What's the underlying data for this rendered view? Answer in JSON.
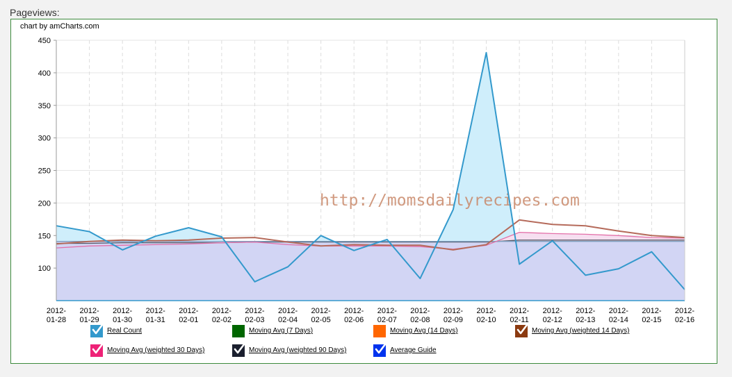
{
  "page": {
    "section_title": "Pageviews:",
    "credit": "chart by amCharts.com",
    "watermark": "http://momsdailyrecipes.com"
  },
  "colors": {
    "real": "#3399cc",
    "real_fill": "#cfeefb",
    "weighted30": "#e36fa8",
    "weighted30_fill": "#f6dff0",
    "weighted14": "#b56a5a",
    "avg_fill": "#d2d5f4",
    "guide_dark": "#555a66",
    "guide_blue": "#7f9fbf"
  },
  "chart_data": {
    "type": "line",
    "x": [
      "2012-01-28",
      "2012-01-29",
      "2012-01-30",
      "2012-01-31",
      "2012-02-01",
      "2012-02-02",
      "2012-02-03",
      "2012-02-04",
      "2012-02-05",
      "2012-02-06",
      "2012-02-07",
      "2012-02-08",
      "2012-02-09",
      "2012-02-10",
      "2012-02-11",
      "2012-02-12",
      "2012-02-13",
      "2012-02-14",
      "2012-02-15",
      "2012-02-16"
    ],
    "x_tick_labels": [
      [
        "2012-",
        "01-28"
      ],
      [
        "2012-",
        "01-29"
      ],
      [
        "2012-",
        "01-30"
      ],
      [
        "2012-",
        "01-31"
      ],
      [
        "2012-",
        "02-01"
      ],
      [
        "2012-",
        "02-02"
      ],
      [
        "2012-",
        "02-03"
      ],
      [
        "2012-",
        "02-04"
      ],
      [
        "2012-",
        "02-05"
      ],
      [
        "2012-",
        "02-06"
      ],
      [
        "2012-",
        "02-07"
      ],
      [
        "2012-",
        "02-08"
      ],
      [
        "2012-",
        "02-09"
      ],
      [
        "2012-",
        "02-10"
      ],
      [
        "2012-",
        "02-11"
      ],
      [
        "2012-",
        "02-12"
      ],
      [
        "2012-",
        "02-13"
      ],
      [
        "2012-",
        "02-14"
      ],
      [
        "2012-",
        "02-15"
      ],
      [
        "2012-",
        "02-16"
      ]
    ],
    "ylim": [
      50,
      450
    ],
    "y_ticks": [
      100,
      150,
      200,
      250,
      300,
      350,
      400,
      450
    ],
    "grid": true,
    "legend_position": "bottom",
    "series": [
      {
        "name": "Real Count",
        "color": "#3399cc",
        "fill": "#cfeefb",
        "values": [
          165,
          156,
          128,
          149,
          162,
          148,
          79,
          102,
          150,
          127,
          144,
          84,
          190,
          431,
          106,
          142,
          89,
          99,
          125,
          67
        ]
      },
      {
        "name": "Moving Avg (weighted 30 Days)",
        "color": "#e36fa8",
        "fill": "#f6dff0",
        "values": [
          131,
          134,
          135,
          136,
          137,
          139,
          140,
          136,
          134,
          134,
          134,
          133,
          129,
          135,
          155,
          153,
          152,
          150,
          147,
          146
        ]
      },
      {
        "name": "Moving Avg (weighted 14 Days)",
        "color": "#b56a5a",
        "values": [
          137,
          141,
          143,
          142,
          143,
          146,
          147,
          140,
          134,
          136,
          135,
          135,
          128,
          136,
          174,
          167,
          165,
          157,
          150,
          147
        ]
      },
      {
        "name": "Average Guide",
        "color": "#7f9fbf",
        "fill": "#d2d5f4",
        "values": [
          141,
          141,
          141,
          141,
          141,
          141,
          141,
          141,
          141,
          141,
          141,
          141,
          141,
          141,
          141,
          141,
          141,
          141,
          141,
          141
        ]
      },
      {
        "name": "Moving Avg (weighted 90 Days)",
        "color": "#555a66",
        "values": [
          138,
          138,
          139,
          139,
          139,
          139,
          140,
          140,
          140,
          140,
          140,
          140,
          140,
          140,
          143,
          143,
          143,
          143,
          143,
          143
        ]
      }
    ]
  },
  "legend": [
    {
      "label": "Real Count",
      "color": "#3399cc",
      "checked": true
    },
    {
      "label": "Moving Avg (7 Days)",
      "color": "#006600",
      "checked": false
    },
    {
      "label": "Moving Avg (14 Days)",
      "color": "#ff6600",
      "checked": false
    },
    {
      "label": "Moving Avg (weighted 14 Days)",
      "color": "#8b3a10",
      "checked": true
    },
    {
      "label": "Moving Avg (weighted 30 Days)",
      "color": "#ee2277",
      "checked": true
    },
    {
      "label": "Moving Avg (weighted 90 Days)",
      "color": "#1a1f2e",
      "checked": true
    },
    {
      "label": "Average Guide",
      "color": "#0033ee",
      "checked": true
    }
  ]
}
